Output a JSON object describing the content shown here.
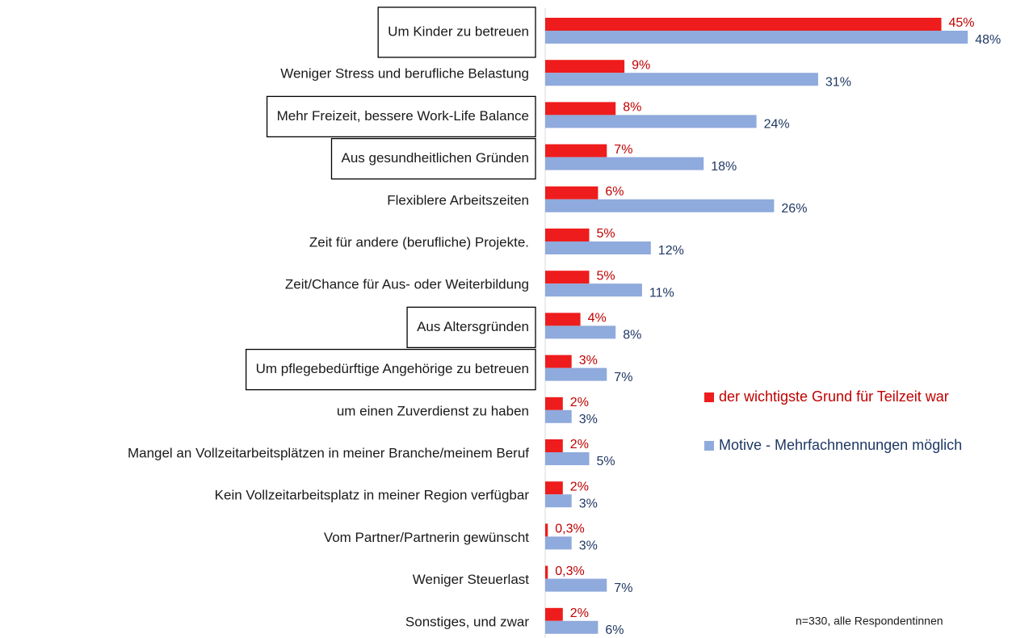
{
  "chart_data": {
    "type": "bar",
    "orientation": "horizontal",
    "categories": [
      "Um Kinder zu betreuen",
      "Weniger Stress und berufliche Belastung",
      "Mehr Freizeit, bessere Work-Life Balance",
      "Aus gesundheitlichen Gründen",
      "Flexiblere Arbeitszeiten",
      "Zeit für andere (berufliche) Projekte.",
      "Zeit/Chance für Aus- oder Weiterbildung",
      "Aus Altersgründen",
      "Um pflegebedürftige Angehörige zu betreuen",
      "um einen Zuverdienst zu haben",
      "Mangel an Vollzeitarbeitsplätzen in meiner Branche/meinem Beruf",
      "Kein Vollzeitarbeitsplatz in meiner Region verfügbar",
      "Vom Partner/Partnerin gewünscht",
      "Weniger Steuerlast",
      "Sonstiges, und zwar"
    ],
    "boxed": [
      true,
      false,
      true,
      true,
      false,
      false,
      false,
      true,
      true,
      false,
      false,
      false,
      false,
      false,
      false
    ],
    "series": [
      {
        "name": "der wichtigste Grund für Teilzeit war",
        "color": "#ee1c1c",
        "label_color": "#c00000",
        "values": [
          45,
          9,
          8,
          7,
          6,
          5,
          5,
          4,
          3,
          2,
          2,
          2,
          0.3,
          0.3,
          2
        ],
        "value_labels": [
          "45%",
          "9%",
          "8%",
          "7%",
          "6%",
          "5%",
          "5%",
          "4%",
          "3%",
          "2%",
          "2%",
          "2%",
          "0,3%",
          "0,3%",
          "2%"
        ]
      },
      {
        "name": "Motive - Mehrfachnennungen möglich",
        "color": "#8faadc",
        "label_color": "#1f3864",
        "values": [
          48,
          31,
          24,
          18,
          26,
          12,
          11,
          8,
          7,
          3,
          5,
          3,
          3,
          7,
          6
        ],
        "value_labels": [
          "48%",
          "31%",
          "24%",
          "18%",
          "26%",
          "12%",
          "11%",
          "8%",
          "7%",
          "3%",
          "5%",
          "3%",
          "3%",
          "7%",
          "6%"
        ]
      }
    ],
    "xlim": [
      0,
      50
    ],
    "annotation": "n=330, alle Respondentinnen"
  }
}
